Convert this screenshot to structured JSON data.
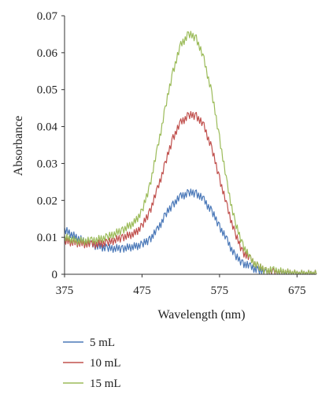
{
  "chart_data": {
    "type": "line",
    "title": "",
    "xlabel": "Wavelength (nm)",
    "ylabel": "Absorbance",
    "xlim": [
      375,
      700
    ],
    "ylim": [
      0,
      0.07
    ],
    "x_ticks": [
      375,
      475,
      575,
      675
    ],
    "x_tick_labels": [
      "375",
      "475",
      "575",
      "675"
    ],
    "y_ticks": [
      0,
      0.01,
      0.02,
      0.03,
      0.04,
      0.05,
      0.06,
      0.07
    ],
    "y_tick_labels": [
      "0",
      "0.01",
      "0.02",
      "0.03",
      "0.04",
      "0.05",
      "0.06",
      "0.07"
    ],
    "grid": false,
    "legend_position": "bottom-left",
    "series": [
      {
        "name": "5 mL",
        "color": "#4a78b8",
        "x": [
          375,
          390,
          410,
          430,
          450,
          465,
          475,
          485,
          495,
          505,
          515,
          525,
          535,
          545,
          555,
          565,
          575,
          585,
          595,
          605,
          615,
          625,
          635,
          645,
          660,
          675,
          690,
          700
        ],
        "y": [
          0.012,
          0.01,
          0.008,
          0.007,
          0.007,
          0.0075,
          0.008,
          0.0095,
          0.012,
          0.016,
          0.019,
          0.021,
          0.022,
          0.022,
          0.02,
          0.017,
          0.013,
          0.009,
          0.005,
          0.003,
          0.002,
          0.001,
          0.0005,
          0.0005,
          0.0,
          0.0,
          0.0,
          0.0
        ]
      },
      {
        "name": "10 mL",
        "color": "#c0504d",
        "x": [
          375,
          390,
          410,
          430,
          450,
          465,
          475,
          485,
          495,
          505,
          515,
          525,
          535,
          545,
          555,
          565,
          575,
          585,
          595,
          605,
          615,
          625,
          635,
          645,
          660,
          675,
          690,
          700
        ],
        "y": [
          0.009,
          0.0085,
          0.008,
          0.0085,
          0.01,
          0.011,
          0.013,
          0.017,
          0.023,
          0.03,
          0.037,
          0.041,
          0.043,
          0.043,
          0.04,
          0.034,
          0.026,
          0.018,
          0.011,
          0.006,
          0.004,
          0.002,
          0.001,
          0.0005,
          0.0005,
          0.0,
          0.0,
          0.0
        ]
      },
      {
        "name": "15 mL",
        "color": "#9bbb59",
        "x": [
          375,
          390,
          410,
          430,
          450,
          465,
          475,
          485,
          495,
          505,
          515,
          525,
          535,
          545,
          555,
          565,
          575,
          585,
          595,
          605,
          615,
          625,
          635,
          645,
          660,
          675,
          690,
          700
        ],
        "y": [
          0.01,
          0.009,
          0.009,
          0.01,
          0.012,
          0.014,
          0.017,
          0.024,
          0.034,
          0.045,
          0.055,
          0.062,
          0.065,
          0.064,
          0.058,
          0.049,
          0.037,
          0.024,
          0.014,
          0.008,
          0.004,
          0.002,
          0.001,
          0.001,
          0.0005,
          0.0,
          0.0,
          0.0
        ]
      }
    ]
  }
}
